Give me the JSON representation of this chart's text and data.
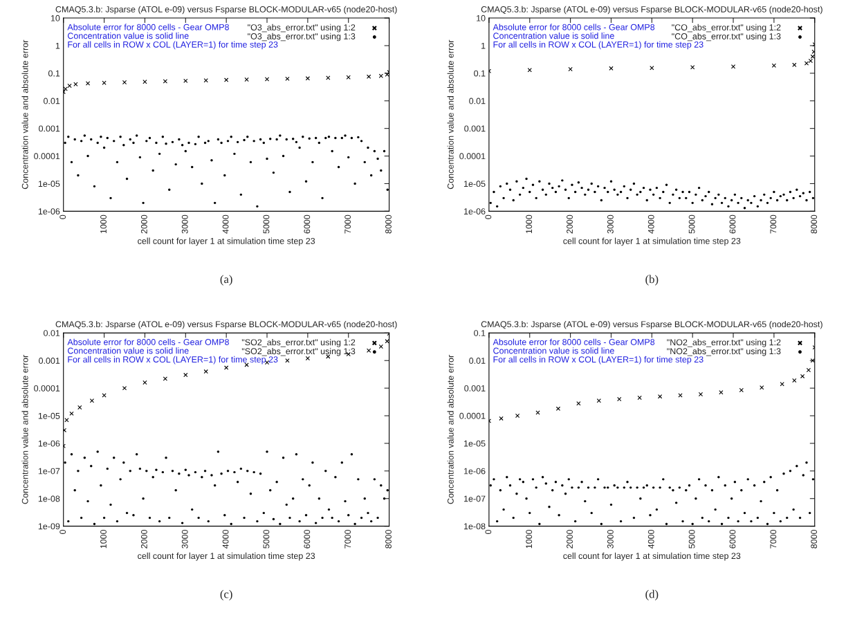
{
  "chart_data": [
    {
      "type": "scatter",
      "title": "CMAQ5.3.b: Jsparse (ATOL e-09) versus Fsparse BLOCK-MODULAR-v65 (node20-host)",
      "xlabel": "cell count for layer 1 at simulation time step 23",
      "ylabel": "Concentration value and absolute error",
      "annotations": [
        "Absolute error for 8000 cells - Gear OMP8",
        "Concentration value is solid line",
        "For all cells in ROW x COL (LAYER=1) for time step 23",
        "(a)"
      ],
      "log": "y",
      "xlim": [
        0,
        8000
      ],
      "xticks": [
        0,
        1000,
        2000,
        3000,
        4000,
        5000,
        6000,
        7000,
        8000
      ],
      "ylim": [
        1e-06,
        10
      ],
      "yticks": [
        1e-06,
        1e-05,
        0.0001,
        0.001,
        0.01,
        0.1,
        1,
        10
      ],
      "legend": "top right",
      "grid": false,
      "series": [
        {
          "name": "\"O3_abs_error.txt\" using 1:2",
          "color": "#000000",
          "marker": "cross",
          "x": [
            0,
            50,
            150,
            300,
            600,
            1000,
            1500,
            2000,
            2500,
            3000,
            3500,
            4000,
            4500,
            5000,
            5500,
            6000,
            6500,
            7000,
            7500,
            7800,
            7950,
            8000
          ],
          "values": [
            0.021,
            0.027,
            0.035,
            0.04,
            0.043,
            0.045,
            0.047,
            0.049,
            0.051,
            0.053,
            0.055,
            0.057,
            0.059,
            0.061,
            0.063,
            0.065,
            0.068,
            0.071,
            0.075,
            0.08,
            0.09,
            0.11
          ]
        },
        {
          "name": "\"O3_abs_error.txt\" using 1:3",
          "color": "#000000",
          "marker": "circle",
          "x": [
            40,
            120,
            200,
            280,
            360,
            440,
            520,
            600,
            680,
            760,
            840,
            920,
            1000,
            1080,
            1160,
            1240,
            1320,
            1400,
            1480,
            1560,
            1640,
            1720,
            1800,
            1880,
            1960,
            2040,
            2120,
            2200,
            2280,
            2360,
            2440,
            2520,
            2600,
            2680,
            2760,
            2840,
            2920,
            3000,
            3080,
            3160,
            3240,
            3320,
            3400,
            3480,
            3560,
            3640,
            3720,
            3800,
            3880,
            3960,
            4040,
            4120,
            4200,
            4280,
            4360,
            4440,
            4520,
            4600,
            4680,
            4760,
            4840,
            4920,
            5000,
            5080,
            5160,
            5240,
            5320,
            5400,
            5480,
            5560,
            5640,
            5720,
            5800,
            5880,
            5960,
            6040,
            6120,
            6200,
            6280,
            6360,
            6440,
            6520,
            6600,
            6680,
            6760,
            6840,
            6920,
            7000,
            7080,
            7160,
            7240,
            7320,
            7400,
            7480,
            7560,
            7640,
            7720,
            7800,
            7880,
            7960
          ],
          "values": [
            0.0003,
            0.0005,
            6e-05,
            0.0004,
            2e-05,
            0.00035,
            0.00055,
            0.0001,
            0.0004,
            8e-06,
            0.0003,
            0.0005,
            0.0002,
            0.00045,
            3e-06,
            0.00035,
            6e-05,
            0.0005,
            0.00025,
            1.5e-05,
            0.0004,
            0.0003,
            0.00055,
            9e-05,
            2e-06,
            0.00035,
            0.00045,
            3e-05,
            0.0003,
            0.00012,
            0.0005,
            0.00028,
            6e-06,
            0.00032,
            5e-05,
            0.0004,
            0.00025,
            0.00015,
            0.0003,
            4e-05,
            0.00027,
            0.0005,
            1e-05,
            0.0003,
            0.00035,
            7e-05,
            2e-06,
            0.0004,
            0.0003,
            2e-05,
            0.00035,
            0.0005,
            0.00012,
            0.00032,
            4e-06,
            0.00038,
            0.0005,
            6e-05,
            0.00035,
            1.5e-06,
            0.0004,
            0.0003,
            8e-05,
            0.00042,
            2.5e-05,
            0.0004,
            0.00055,
            0.0001,
            0.0004,
            5e-06,
            0.00042,
            0.00032,
            0.0002,
            0.0005,
            1.2e-05,
            0.00043,
            6e-05,
            0.00045,
            0.0003,
            3e-06,
            0.00045,
            0.0005,
            0.00015,
            0.00045,
            4e-05,
            0.00045,
            0.00055,
            9e-05,
            0.00045,
            1e-05,
            0.00048,
            0.00035,
            6e-05,
            0.0002,
            2e-05,
            0.00015,
            8e-05,
            3e-05,
            0.00015,
            6e-06
          ]
        }
      ]
    },
    {
      "type": "scatter",
      "title": "CMAQ5.3.b: Jsparse (ATOL e-09) versus Fsparse BLOCK-MODULAR-v65 (node20-host)",
      "xlabel": "cell count for layer 1 at simulation time step 23",
      "ylabel": "Concentration value and absolute error",
      "annotations": [
        "Absolute error for 8000 cells - Gear OMP8",
        "Concentration value is solid line",
        "For all cells in ROW x COL (LAYER=1) for time step 23",
        "(b)"
      ],
      "log": "y",
      "xlim": [
        0,
        8000
      ],
      "xticks": [
        0,
        1000,
        2000,
        3000,
        4000,
        5000,
        6000,
        7000,
        8000
      ],
      "ylim": [
        1e-06,
        10
      ],
      "yticks": [
        1e-06,
        1e-05,
        0.0001,
        0.001,
        0.01,
        0.1,
        1,
        10
      ],
      "legend": "top right",
      "grid": false,
      "series": [
        {
          "name": "\"CO_abs_error.txt\" using 1:2",
          "color": "#000000",
          "marker": "cross",
          "x": [
            0,
            1000,
            2000,
            3000,
            4000,
            5000,
            6000,
            7000,
            7500,
            7800,
            7900,
            7950,
            7980,
            8000
          ],
          "values": [
            0.12,
            0.13,
            0.14,
            0.15,
            0.155,
            0.165,
            0.175,
            0.19,
            0.2,
            0.23,
            0.28,
            0.4,
            0.6,
            1.1
          ]
        },
        {
          "name": "\"CO_abs_error.txt\" using 1:3",
          "color": "#000000",
          "marker": "circle",
          "x": [
            40,
            120,
            200,
            280,
            360,
            440,
            520,
            600,
            680,
            760,
            840,
            920,
            1000,
            1080,
            1160,
            1240,
            1320,
            1400,
            1480,
            1560,
            1640,
            1720,
            1800,
            1880,
            1960,
            2040,
            2120,
            2200,
            2280,
            2360,
            2440,
            2520,
            2600,
            2680,
            2760,
            2840,
            2920,
            3000,
            3080,
            3160,
            3240,
            3320,
            3400,
            3480,
            3560,
            3640,
            3720,
            3800,
            3880,
            3960,
            4040,
            4120,
            4200,
            4280,
            4360,
            4440,
            4520,
            4600,
            4680,
            4760,
            4840,
            4920,
            5000,
            5080,
            5160,
            5240,
            5320,
            5400,
            5480,
            5560,
            5640,
            5720,
            5800,
            5880,
            5960,
            6040,
            6120,
            6200,
            6280,
            6360,
            6440,
            6520,
            6600,
            6680,
            6760,
            6840,
            6920,
            7000,
            7080,
            7160,
            7240,
            7320,
            7400,
            7480,
            7560,
            7640,
            7720,
            7800,
            7880,
            7960
          ],
          "values": [
            2e-06,
            5e-06,
            1.5e-06,
            8e-06,
            3e-06,
            1e-05,
            6e-06,
            2.5e-06,
            1.2e-05,
            4e-06,
            7e-06,
            1.5e-05,
            5e-06,
            9e-06,
            3e-06,
            1.2e-05,
            6e-06,
            4e-06,
            1e-05,
            7e-06,
            5e-06,
            8e-06,
            1.3e-05,
            6e-06,
            3e-06,
            9e-06,
            5e-06,
            1.1e-05,
            7e-06,
            4e-06,
            6e-06,
            1e-05,
            5e-06,
            8e-06,
            2.5e-06,
            7e-06,
            5e-06,
            1.2e-05,
            6e-06,
            4e-06,
            5e-06,
            8e-06,
            3e-06,
            6e-06,
            1e-05,
            4e-06,
            5e-06,
            7e-06,
            2.5e-06,
            6e-06,
            4e-06,
            7e-06,
            3e-06,
            5e-06,
            9e-06,
            2e-06,
            4e-06,
            6e-06,
            3e-06,
            5e-06,
            3e-06,
            5e-06,
            2e-06,
            4e-06,
            7e-06,
            2.5e-06,
            3.5e-06,
            5e-06,
            1.8e-06,
            3e-06,
            4e-06,
            2e-06,
            3e-06,
            1.5e-06,
            2.5e-06,
            4e-06,
            2e-06,
            3e-06,
            1.3e-06,
            2.5e-06,
            2e-06,
            3.5e-06,
            1.5e-06,
            2.5e-06,
            4e-06,
            2e-06,
            3e-06,
            5e-06,
            2.5e-06,
            3.5e-06,
            4e-06,
            2.5e-06,
            5e-06,
            3e-06,
            6e-06,
            3.5e-06,
            4.5e-06,
            2.5e-06,
            5e-06,
            3e-06
          ]
        }
      ]
    },
    {
      "type": "scatter",
      "title": "CMAQ5.3.b: Jsparse (ATOL e-09) versus Fsparse BLOCK-MODULAR-v65 (node20-host)",
      "xlabel": "cell count for layer 1 at simulation time step 23",
      "ylabel": "Concentration value and absolute error",
      "annotations": [
        "Absolute error for 8000 cells - Gear OMP8",
        "Concentration value is solid line",
        "For all cells in ROW x COL (LAYER=1) for time step 23",
        "(c)"
      ],
      "log": "y",
      "xlim": [
        0,
        8000
      ],
      "xticks": [
        0,
        1000,
        2000,
        3000,
        4000,
        5000,
        6000,
        7000,
        8000
      ],
      "ylim": [
        1e-09,
        0.01
      ],
      "yticks": [
        1e-09,
        1e-08,
        1e-07,
        1e-06,
        1e-05,
        0.0001,
        0.001,
        0.01
      ],
      "legend": "top right",
      "grid": false,
      "series": [
        {
          "name": "\"SO2_abs_error.txt\" using 1:2",
          "color": "#000000",
          "marker": "cross",
          "x": [
            0,
            20,
            80,
            200,
            400,
            700,
            1000,
            1500,
            2000,
            2500,
            3000,
            3500,
            4000,
            4500,
            5000,
            5500,
            6000,
            6500,
            7000,
            7500,
            7800,
            7950,
            8000
          ],
          "values": [
            8e-07,
            3e-06,
            7e-06,
            1.2e-05,
            2e-05,
            3.5e-05,
            5.5e-05,
            0.0001,
            0.00016,
            0.00022,
            0.0003,
            0.0004,
            0.00055,
            0.0007,
            0.00085,
            0.001,
            0.0012,
            0.0014,
            0.0017,
            0.0023,
            0.0032,
            0.005,
            0.0095
          ]
        },
        {
          "name": "\"SO2_abs_error.txt\" using 1:3",
          "color": "#000000",
          "marker": "circle",
          "x": [
            40,
            120,
            200,
            280,
            360,
            440,
            520,
            600,
            680,
            760,
            840,
            920,
            1000,
            1080,
            1160,
            1240,
            1320,
            1400,
            1480,
            1560,
            1640,
            1720,
            1800,
            1880,
            1960,
            2040,
            2120,
            2200,
            2280,
            2360,
            2440,
            2520,
            2600,
            2680,
            2760,
            2840,
            2920,
            3000,
            3080,
            3160,
            3240,
            3320,
            3400,
            3480,
            3560,
            3640,
            3720,
            3800,
            3880,
            3960,
            4040,
            4120,
            4200,
            4280,
            4360,
            4440,
            4520,
            4600,
            4680,
            4760,
            4840,
            4920,
            5000,
            5080,
            5160,
            5240,
            5320,
            5400,
            5480,
            5560,
            5640,
            5720,
            5800,
            5880,
            5960,
            6040,
            6120,
            6200,
            6280,
            6360,
            6440,
            6520,
            6600,
            6680,
            6760,
            6840,
            6920,
            7000,
            7080,
            7160,
            7240,
            7320,
            7400,
            7480,
            7560,
            7640,
            7720,
            7800,
            7880,
            7960
          ],
          "values": [
            2e-07,
            1.5e-09,
            4e-07,
            2e-08,
            1e-07,
            2e-09,
            3e-07,
            8e-09,
            1.5e-07,
            1.2e-09,
            5e-07,
            3e-08,
            2e-09,
            1.2e-07,
            6e-09,
            3e-07,
            1.5e-09,
            5e-08,
            2e-07,
            3e-09,
            1e-07,
            2.5e-09,
            4e-07,
            1.2e-07,
            1e-08,
            1e-07,
            2e-09,
            6e-08,
            1.1e-07,
            1.5e-09,
            9e-08,
            3e-07,
            2e-09,
            1e-07,
            2e-08,
            8e-08,
            1.3e-09,
            1.1e-07,
            7e-08,
            4e-09,
            9e-08,
            2e-09,
            6e-08,
            1e-07,
            1.5e-09,
            7e-08,
            3e-08,
            5e-07,
            8e-08,
            2.5e-09,
            1e-07,
            1.2e-09,
            9e-08,
            4e-08,
            1.2e-07,
            2e-09,
            1e-07,
            1.5e-08,
            9e-08,
            1.5e-09,
            8e-08,
            3e-09,
            5e-07,
            2e-08,
            1.8e-09,
            4e-08,
            1.2e-09,
            3e-07,
            6e-09,
            2e-09,
            1e-08,
            4e-07,
            1.5e-09,
            5e-08,
            2.5e-09,
            3e-08,
            2e-07,
            1.3e-09,
            1e-08,
            2e-09,
            1e-07,
            4e-09,
            2e-09,
            6e-08,
            1.5e-09,
            2e-07,
            8e-09,
            2.5e-09,
            4e-07,
            1.2e-09,
            5e-08,
            2e-09,
            1e-08,
            3e-09,
            1.5e-09,
            5e-08,
            2e-09,
            3e-08,
            1e-08,
            2e-08
          ]
        }
      ]
    },
    {
      "type": "scatter",
      "title": "CMAQ5.3.b: Jsparse (ATOL e-09) versus Fsparse BLOCK-MODULAR-v65 (node20-host)",
      "xlabel": "cell count for layer 1 at simulation time step 23",
      "ylabel": "Concentration value and absolute error",
      "annotations": [
        "Absolute error for 8000 cells - Gear OMP8",
        "Concentration value is solid line",
        "For all cells in ROW x COL (LAYER=1) for time step 23",
        "(d)"
      ],
      "log": "y",
      "xlim": [
        0,
        8000
      ],
      "xticks": [
        0,
        1000,
        2000,
        3000,
        4000,
        5000,
        6000,
        7000,
        8000
      ],
      "ylim": [
        1e-08,
        0.1
      ],
      "yticks": [
        1e-08,
        1e-07,
        1e-06,
        1e-05,
        0.0001,
        0.001,
        0.01,
        0.1
      ],
      "legend": "top right",
      "grid": false,
      "series": [
        {
          "name": "\"NO2_abs_error.txt\" using 1:2",
          "color": "#000000",
          "marker": "cross",
          "x": [
            0,
            300,
            700,
            1200,
            1700,
            2200,
            2700,
            3200,
            3700,
            4200,
            4700,
            5200,
            5700,
            6200,
            6700,
            7200,
            7500,
            7700,
            7850,
            7950,
            8000
          ],
          "values": [
            6.5e-05,
            8e-05,
            0.0001,
            0.00013,
            0.00018,
            0.00028,
            0.00035,
            0.0004,
            0.00045,
            0.0005,
            0.00055,
            0.0006,
            0.0007,
            0.00085,
            0.00105,
            0.0014,
            0.0019,
            0.0027,
            0.0045,
            0.01,
            0.03
          ]
        },
        {
          "name": "\"NO2_abs_error.txt\" using 1:3",
          "color": "#000000",
          "marker": "circle",
          "x": [
            40,
            120,
            200,
            280,
            360,
            440,
            520,
            600,
            680,
            760,
            840,
            920,
            1000,
            1080,
            1160,
            1240,
            1320,
            1400,
            1480,
            1560,
            1640,
            1720,
            1800,
            1880,
            1960,
            2040,
            2120,
            2200,
            2280,
            2360,
            2440,
            2520,
            2600,
            2680,
            2760,
            2840,
            2920,
            3000,
            3080,
            3160,
            3240,
            3320,
            3400,
            3480,
            3560,
            3640,
            3720,
            3800,
            3880,
            3960,
            4040,
            4120,
            4200,
            4280,
            4360,
            4440,
            4520,
            4600,
            4680,
            4760,
            4840,
            4920,
            5000,
            5080,
            5160,
            5240,
            5320,
            5400,
            5480,
            5560,
            5640,
            5720,
            5800,
            5880,
            5960,
            6040,
            6120,
            6200,
            6280,
            6360,
            6440,
            6520,
            6600,
            6680,
            6760,
            6840,
            6920,
            7000,
            7080,
            7160,
            7240,
            7320,
            7400,
            7480,
            7560,
            7640,
            7720,
            7800,
            7880,
            7960
          ],
          "values": [
            3e-07,
            5e-07,
            1.5e-08,
            2e-07,
            4e-08,
            6e-07,
            3e-07,
            2e-08,
            1.5e-07,
            5e-07,
            4e-07,
            1e-07,
            3e-08,
            5e-07,
            2.5e-07,
            1.2e-08,
            6e-07,
            3.5e-07,
            5e-08,
            2e-07,
            4e-07,
            2.5e-08,
            3e-07,
            1.5e-07,
            5e-07,
            2.5e-07,
            1.5e-08,
            2.5e-07,
            4e-07,
            8e-08,
            2.5e-07,
            3e-08,
            2.5e-07,
            5e-07,
            1.2e-08,
            2.5e-07,
            2.5e-07,
            6e-08,
            3e-07,
            2.5e-07,
            1.5e-08,
            2.5e-07,
            4e-07,
            2.5e-07,
            2e-08,
            2.5e-07,
            1e-07,
            2.5e-07,
            3e-07,
            2.5e-08,
            2.5e-07,
            4e-08,
            2.5e-07,
            5e-07,
            1.2e-08,
            2.5e-07,
            2e-07,
            7e-08,
            2.5e-07,
            1.5e-08,
            2e-07,
            3e-07,
            1.2e-08,
            1e-07,
            5e-07,
            2e-08,
            3e-07,
            1.5e-08,
            2e-07,
            4e-08,
            6e-07,
            1.2e-08,
            3e-07,
            2e-08,
            1e-07,
            4e-07,
            1.5e-08,
            2e-07,
            3e-08,
            5e-07,
            1.5e-08,
            3e-07,
            2e-08,
            8e-08,
            4e-07,
            1.2e-08,
            6e-07,
            3e-08,
            2e-07,
            1.5e-08,
            8e-07,
            2e-08,
            1e-06,
            4e-08,
            1.5e-06,
            2e-08,
            7e-07,
            2e-06,
            3e-08,
            5e-07
          ]
        }
      ]
    }
  ]
}
